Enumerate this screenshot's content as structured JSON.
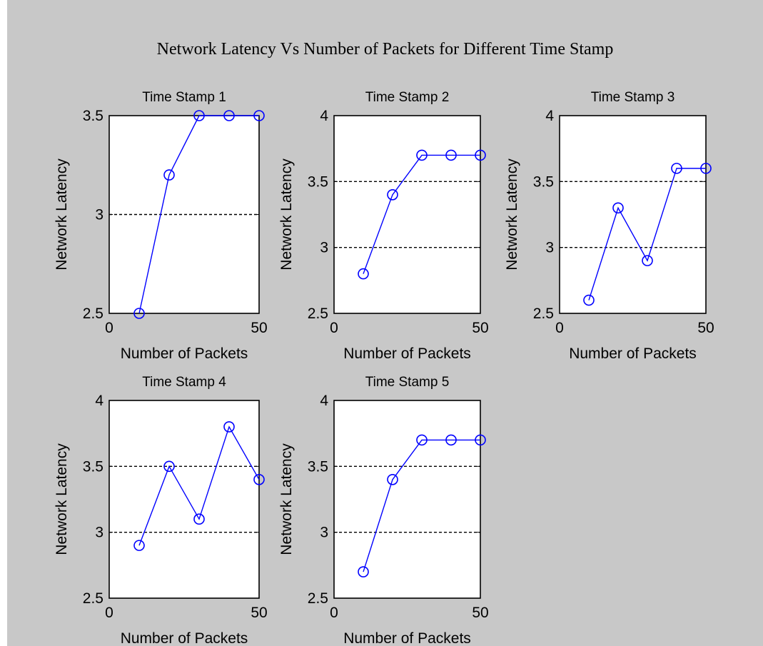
{
  "figure_title": "Network Latency Vs Number of Packets for Different Time Stamp",
  "colors": {
    "background": "#c8c8c8",
    "axes": "#ffffff",
    "line": "#0000ff",
    "grid": "#000000"
  },
  "chart_data": [
    {
      "type": "line",
      "title": "Time Stamp 1",
      "xlabel": "Number of Packets",
      "ylabel": "Network Latency",
      "x": [
        10,
        20,
        30,
        40,
        50
      ],
      "y": [
        2.5,
        3.2,
        3.5,
        3.5,
        3.5
      ],
      "xlim": [
        0,
        50
      ],
      "ylim": [
        2.5,
        3.5
      ],
      "xticks": [
        0,
        50
      ],
      "yticks": [
        2.5,
        3,
        3.5
      ],
      "ytick_labels": [
        "2.5",
        "3",
        "3.5"
      ],
      "grid_y": [
        3
      ],
      "marker": "circle"
    },
    {
      "type": "line",
      "title": "Time Stamp 2",
      "xlabel": "Number of Packets",
      "ylabel": "Network Latency",
      "x": [
        10,
        20,
        30,
        40,
        50
      ],
      "y": [
        2.8,
        3.4,
        3.7,
        3.7,
        3.7
      ],
      "xlim": [
        0,
        50
      ],
      "ylim": [
        2.5,
        4
      ],
      "xticks": [
        0,
        50
      ],
      "yticks": [
        2.5,
        3,
        3.5,
        4
      ],
      "ytick_labels": [
        "2.5",
        "3",
        "3.5",
        "4"
      ],
      "grid_y": [
        3,
        3.5
      ],
      "marker": "circle"
    },
    {
      "type": "line",
      "title": "Time Stamp 3",
      "xlabel": "Number of Packets",
      "ylabel": "Network Latency",
      "x": [
        10,
        20,
        30,
        40,
        50
      ],
      "y": [
        2.6,
        3.3,
        2.9,
        3.6,
        3.6
      ],
      "xlim": [
        0,
        50
      ],
      "ylim": [
        2.5,
        4
      ],
      "xticks": [
        0,
        50
      ],
      "yticks": [
        2.5,
        3,
        3.5,
        4
      ],
      "ytick_labels": [
        "2.5",
        "3",
        "3.5",
        "4"
      ],
      "grid_y": [
        3,
        3.5
      ],
      "marker": "circle"
    },
    {
      "type": "line",
      "title": "Time Stamp 4",
      "xlabel": "Number of Packets",
      "ylabel": "Network Latency",
      "x": [
        10,
        20,
        30,
        40,
        50
      ],
      "y": [
        2.9,
        3.5,
        3.1,
        3.8,
        3.4
      ],
      "xlim": [
        0,
        50
      ],
      "ylim": [
        2.5,
        4
      ],
      "xticks": [
        0,
        50
      ],
      "yticks": [
        2.5,
        3,
        3.5,
        4
      ],
      "ytick_labels": [
        "2.5",
        "3",
        "3.5",
        "4"
      ],
      "grid_y": [
        3,
        3.5
      ],
      "marker": "circle"
    },
    {
      "type": "line",
      "title": "Time Stamp 5",
      "xlabel": "Number of Packets",
      "ylabel": "Network Latency",
      "x": [
        10,
        20,
        30,
        40,
        50
      ],
      "y": [
        2.7,
        3.4,
        3.7,
        3.7,
        3.7
      ],
      "xlim": [
        0,
        50
      ],
      "ylim": [
        2.5,
        4
      ],
      "xticks": [
        0,
        50
      ],
      "yticks": [
        2.5,
        3,
        3.5,
        4
      ],
      "ytick_labels": [
        "2.5",
        "3",
        "3.5",
        "4"
      ],
      "grid_y": [
        3,
        3.5
      ],
      "marker": "circle"
    }
  ]
}
